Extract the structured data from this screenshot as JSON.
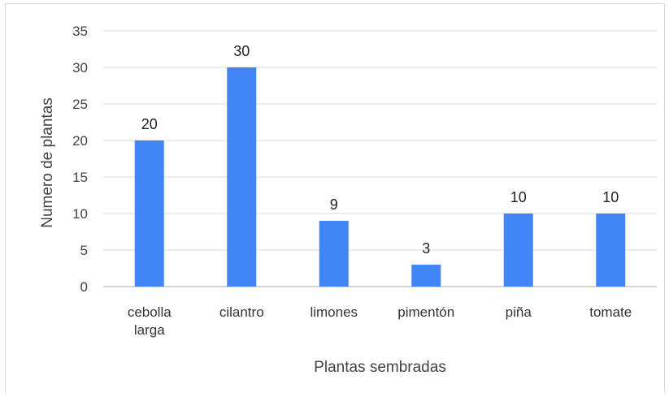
{
  "chart_data": {
    "type": "bar",
    "title": "",
    "xlabel": "Plantas sembradas",
    "ylabel": "Numero de plantas",
    "categories": [
      [
        "cebolla",
        "larga"
      ],
      [
        "cilantro"
      ],
      [
        "limones"
      ],
      [
        "pimentón"
      ],
      [
        "piña"
      ],
      [
        "tomate"
      ]
    ],
    "values": [
      20,
      30,
      9,
      3,
      10,
      10
    ],
    "data_labels": [
      "20",
      "30",
      "9",
      "3",
      "10",
      "10"
    ],
    "yticks": [
      "0",
      "5",
      "10",
      "15",
      "20",
      "25",
      "30",
      "35"
    ],
    "ylim": [
      0,
      35
    ],
    "grid": true,
    "legend": "none",
    "bar_color": "#4285f4",
    "grid_color": "#d9d9d9",
    "axis_color": "#aaaaaa"
  }
}
